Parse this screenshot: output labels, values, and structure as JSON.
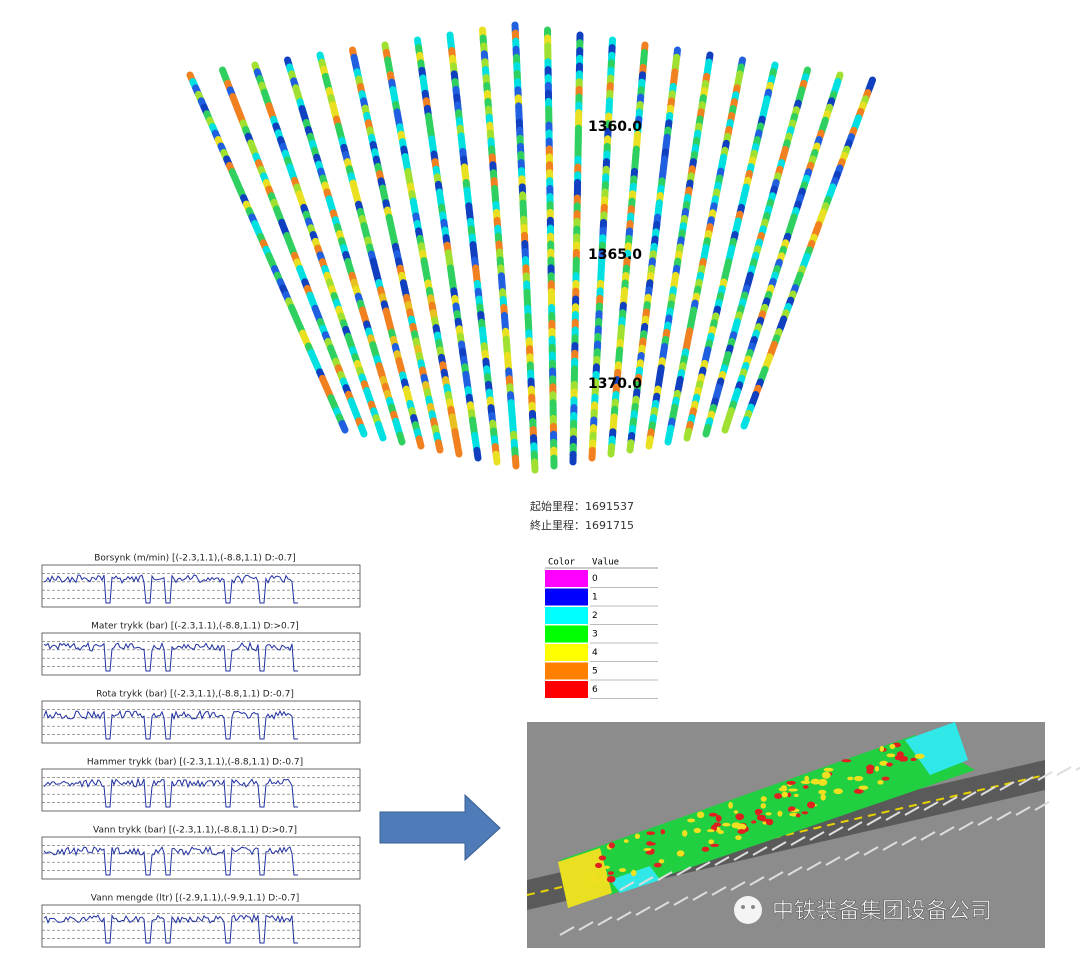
{
  "depth_labels": [
    "1360.0",
    "1365.0",
    "1370.0"
  ],
  "mileage": {
    "start": "起始里程：1691537",
    "end": "終止里程：1691715"
  },
  "legend": {
    "header": [
      "Color",
      "Value"
    ],
    "rows": [
      {
        "color": "#ff00ff",
        "value": "0"
      },
      {
        "color": "#0000ff",
        "value": "1"
      },
      {
        "color": "#00ffff",
        "value": "2"
      },
      {
        "color": "#00ff00",
        "value": "3"
      },
      {
        "color": "#ffff00",
        "value": "4"
      },
      {
        "color": "#ff8000",
        "value": "5"
      },
      {
        "color": "#ff0000",
        "value": "6"
      }
    ]
  },
  "panels": [
    "Borsynk (m/min) [(-2.3,1.1),(-8.8,1.1) D:-0.7]",
    "Mater trykk (bar) [(-2.3,1.1),(-8.8,1.1) D:>0.7]",
    "Rota trykk (bar) [(-2.3,1.1),(-8.8,1.1) D:-0.7]",
    "Hammer trykk (bar) [(-2.3,1.1),(-8.8,1.1) D:-0.7]",
    "Vann trykk (bar) [(-2.3,1.1),(-8.8,1.1) D:>0.7]",
    "Vann mengde (ltr) [(-2.9,1.1),(-9.9,1.1) D:-0.7]"
  ],
  "watermark": "中铁装备集团设备公司"
}
